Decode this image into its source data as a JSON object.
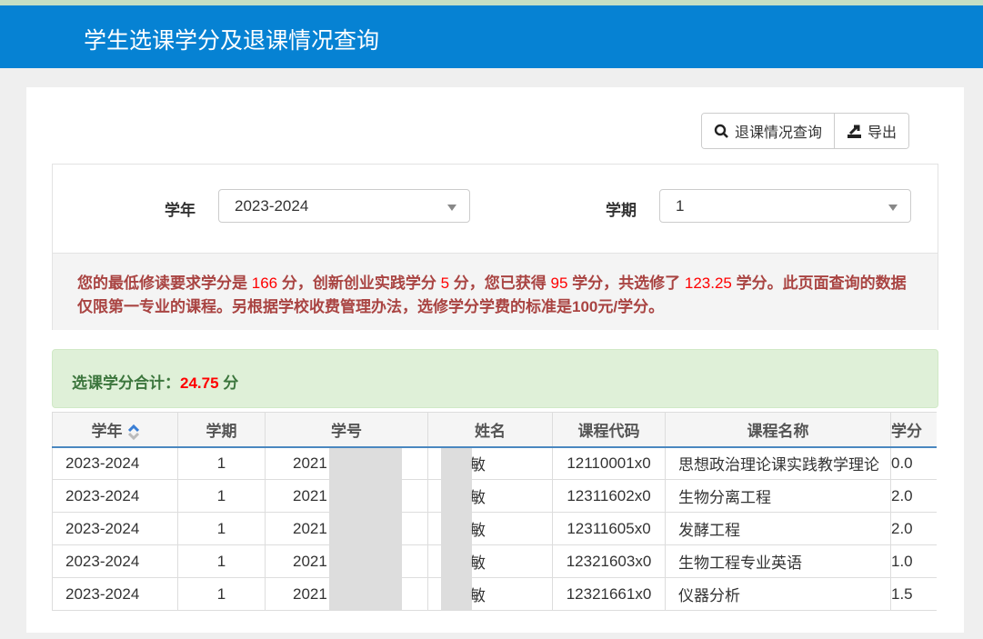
{
  "header": {
    "title": "学生选课学分及退课情况查询"
  },
  "toolbar": {
    "withdraw_query_label": "退课情况查询",
    "export_label": "导出"
  },
  "filters": {
    "year_label": "学年",
    "year_value": "2023-2024",
    "term_label": "学期",
    "term_value": "1"
  },
  "notice": {
    "p1": "您的最低修读要求学分是 ",
    "min_credits": "166",
    "p2": " 分，创新创业实践学分 ",
    "innov_credits": "5",
    "p3": " 分，您已获得 ",
    "earned": "95",
    "p4": " 学分，共选修了 ",
    "selected": "123.25",
    "p5": " 学分。此页面查询的数据仅限第一专业的课程。另根据学校收费管理办法，选修学分学费的标准是100元/学分。"
  },
  "summary": {
    "label": "选课学分合计：",
    "value": "24.75",
    "unit": " 分"
  },
  "table": {
    "headers": [
      "学年",
      "学期",
      "学号",
      "姓名",
      "课程代码",
      "课程名称",
      "学分"
    ],
    "rows": [
      [
        "2023-2024",
        "1",
        "2021",
        "敏",
        "12110001x0",
        "思想政治理论课实践教学理论",
        "0.0"
      ],
      [
        "2023-2024",
        "1",
        "2021",
        "敏",
        "12311602x0",
        "生物分离工程",
        "2.0"
      ],
      [
        "2023-2024",
        "1",
        "2021",
        "敏",
        "12311605x0",
        "发酵工程",
        "2.0"
      ],
      [
        "2023-2024",
        "1",
        "2021",
        "敏",
        "12321603x0",
        "生物工程专业英语",
        "1.0"
      ],
      [
        "2023-2024",
        "1",
        "2021",
        "敏",
        "12321661x0",
        "仪器分析",
        "1.5"
      ]
    ]
  },
  "colors": {
    "header": "#0682d3",
    "alert_bg": "#dff0d8",
    "notice_text": "#a94442",
    "highlight": "#ff0000"
  }
}
